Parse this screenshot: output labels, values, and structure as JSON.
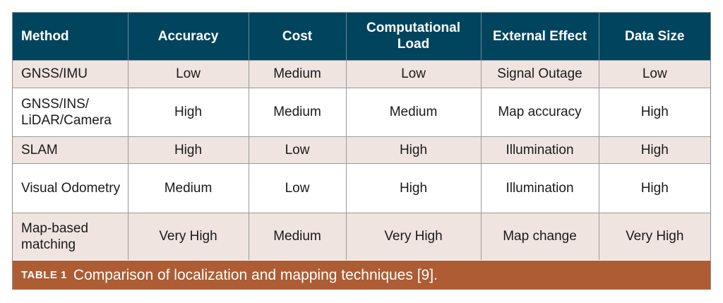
{
  "table": {
    "headers": [
      "Method",
      "Accuracy",
      "Cost",
      "Computational Load",
      "External Effect",
      "Data Size"
    ],
    "rows": [
      [
        "GNSS/IMU",
        "Low",
        "Medium",
        "Low",
        "Signal Outage",
        "Low"
      ],
      [
        "GNSS/INS/ LiDAR/Camera",
        "High",
        "Medium",
        "Medium",
        "Map accuracy",
        "High"
      ],
      [
        "SLAM",
        "High",
        "Low",
        "High",
        "Illumination",
        "High"
      ],
      [
        "Visual Odometry",
        "Medium",
        "Low",
        "High",
        "Illumination",
        "High"
      ],
      [
        "Map-based matching",
        "Very High",
        "Medium",
        "Very High",
        "Map change",
        "Very High"
      ]
    ]
  },
  "caption": {
    "label": "TABLE 1",
    "text": "Comparison of localization and mapping techniques [9]."
  },
  "colors": {
    "header_bg": "#00445e",
    "row_shade": "#efe4e0",
    "caption_bg": "#ad5c33"
  }
}
